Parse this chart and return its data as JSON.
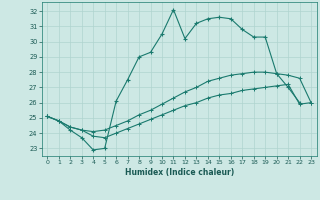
{
  "xlabel": "Humidex (Indice chaleur)",
  "bg_color": "#cde8e4",
  "grid_color": "#b0d4cf",
  "line_color": "#1a7a6e",
  "xlim": [
    -0.5,
    23.5
  ],
  "ylim": [
    22.5,
    32.6
  ],
  "yticks": [
    23,
    24,
    25,
    26,
    27,
    28,
    29,
    30,
    31,
    32
  ],
  "xticks": [
    0,
    1,
    2,
    3,
    4,
    5,
    6,
    7,
    8,
    9,
    10,
    11,
    12,
    13,
    14,
    15,
    16,
    17,
    18,
    19,
    20,
    21,
    22,
    23
  ],
  "line1_x": [
    0,
    1,
    2,
    3,
    4,
    5,
    6,
    7,
    8,
    9,
    10,
    11,
    12,
    13,
    14,
    15,
    16,
    17,
    18,
    19,
    20,
    21,
    22
  ],
  "line1_y": [
    25.1,
    24.8,
    24.2,
    23.7,
    22.9,
    23.0,
    26.1,
    27.5,
    29.0,
    29.3,
    30.5,
    32.1,
    30.2,
    31.2,
    31.5,
    31.6,
    31.5,
    30.8,
    30.3,
    30.3,
    27.9,
    27.0,
    26.0
  ],
  "line2_x": [
    0,
    1,
    2,
    3,
    4,
    5,
    6,
    7,
    8,
    9,
    10,
    11,
    12,
    13,
    14,
    15,
    16,
    17,
    18,
    19,
    20,
    21,
    22,
    23
  ],
  "line2_y": [
    25.1,
    24.8,
    24.4,
    24.2,
    24.1,
    24.2,
    24.5,
    24.8,
    25.2,
    25.5,
    25.9,
    26.3,
    26.7,
    27.0,
    27.4,
    27.6,
    27.8,
    27.9,
    28.0,
    28.0,
    27.9,
    27.8,
    27.6,
    26.0
  ],
  "line3_x": [
    0,
    1,
    2,
    3,
    4,
    5,
    6,
    7,
    8,
    9,
    10,
    11,
    12,
    13,
    14,
    15,
    16,
    17,
    18,
    19,
    20,
    21,
    22,
    23
  ],
  "line3_y": [
    25.1,
    24.8,
    24.4,
    24.2,
    23.8,
    23.7,
    24.0,
    24.3,
    24.6,
    24.9,
    25.2,
    25.5,
    25.8,
    26.0,
    26.3,
    26.5,
    26.6,
    26.8,
    26.9,
    27.0,
    27.1,
    27.2,
    25.9,
    26.0
  ]
}
